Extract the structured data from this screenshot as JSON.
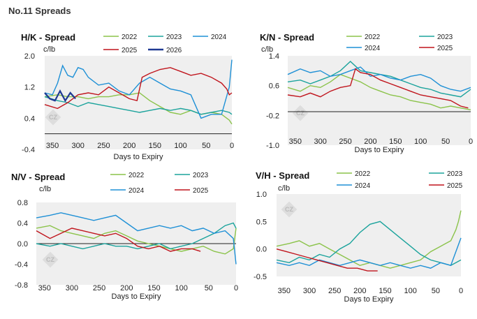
{
  "page_title": "No.11 Spreads",
  "colors": {
    "2022": "#8bc34a",
    "2023": "#1ba39c",
    "2024": "#1e90d6",
    "2025": "#c0141c",
    "2026": "#1f3a93",
    "plot_bg": "#efefef",
    "zero_line": "#222222"
  },
  "watermark": "CZ",
  "chart_data": [
    {
      "id": "hk",
      "type": "line",
      "title": "H/K - Spread",
      "ylabel": "c/lb",
      "xlabel": "Days to Expiry",
      "x_ticks": [
        350,
        300,
        250,
        200,
        150,
        100,
        50,
        0
      ],
      "y_ticks": [
        -0.4,
        0.4,
        1.2,
        2.0
      ],
      "y_tick_labels": [
        "-0.4",
        "0.4",
        "1.2",
        "2.0"
      ],
      "xlim": [
        365,
        0
      ],
      "ylim": [
        -0.4,
        2.0
      ],
      "ref_line": 0,
      "legend_placement": "top",
      "series": [
        {
          "name": "2022",
          "x": [
            365,
            340,
            320,
            300,
            280,
            260,
            240,
            220,
            200,
            180,
            160,
            140,
            120,
            100,
            80,
            60,
            40,
            20,
            5,
            0
          ],
          "y": [
            0.95,
            1.0,
            0.95,
            0.95,
            0.9,
            0.95,
            0.95,
            1.0,
            1.0,
            1.05,
            0.85,
            0.7,
            0.55,
            0.5,
            0.6,
            0.5,
            0.55,
            0.5,
            0.35,
            0.25
          ]
        },
        {
          "name": "2023",
          "x": [
            365,
            340,
            320,
            300,
            280,
            260,
            240,
            220,
            200,
            180,
            160,
            140,
            120,
            100,
            80,
            60,
            40,
            20,
            5,
            0
          ],
          "y": [
            0.95,
            0.85,
            0.8,
            0.7,
            0.8,
            0.75,
            0.7,
            0.65,
            0.6,
            0.55,
            0.6,
            0.65,
            0.6,
            0.65,
            0.6,
            0.5,
            0.55,
            0.6,
            0.55,
            0.5
          ]
        },
        {
          "name": "2024",
          "x": [
            365,
            350,
            340,
            330,
            320,
            310,
            300,
            290,
            280,
            260,
            240,
            220,
            200,
            180,
            160,
            140,
            120,
            100,
            80,
            60,
            40,
            20,
            5,
            0
          ],
          "y": [
            1.05,
            1.0,
            1.3,
            1.75,
            1.5,
            1.45,
            1.7,
            1.65,
            1.45,
            1.25,
            1.3,
            1.1,
            1.0,
            1.3,
            1.45,
            1.3,
            1.15,
            1.1,
            1.0,
            0.4,
            0.5,
            0.5,
            1.2,
            1.9
          ]
        },
        {
          "name": "2025",
          "x": [
            365,
            340,
            320,
            300,
            280,
            260,
            240,
            220,
            200,
            185,
            175,
            160,
            140,
            120,
            100,
            80,
            60,
            40,
            20,
            10,
            5,
            0
          ],
          "y": [
            0.75,
            0.65,
            0.8,
            1.0,
            1.05,
            1.0,
            1.2,
            1.05,
            0.9,
            0.85,
            1.45,
            1.55,
            1.65,
            1.7,
            1.6,
            1.5,
            1.55,
            1.45,
            1.3,
            1.15,
            1.0,
            1.05
          ]
        },
        {
          "name": "2026",
          "x": [
            365,
            355,
            345,
            335,
            325,
            315,
            305
          ],
          "y": [
            1.05,
            0.9,
            0.85,
            1.1,
            0.85,
            1.05,
            0.9
          ]
        }
      ]
    },
    {
      "id": "kn",
      "type": "line",
      "title": "K/N - Spread",
      "ylabel": "c/lb",
      "xlabel": "Days to Expiry",
      "x_ticks": [
        350,
        300,
        250,
        200,
        150,
        100,
        50,
        0
      ],
      "y_ticks": [
        -1.0,
        -0.2,
        0.6,
        1.4
      ],
      "y_tick_labels": [
        "-1.0",
        "-0.2",
        "0.6",
        "1.4"
      ],
      "xlim": [
        365,
        0
      ],
      "ylim": [
        -1.0,
        1.4
      ],
      "ref_line": -0.1,
      "legend_placement": "top",
      "series": [
        {
          "name": "2022",
          "x": [
            365,
            340,
            320,
            300,
            280,
            260,
            240,
            220,
            200,
            180,
            160,
            140,
            120,
            100,
            80,
            60,
            40,
            20,
            0
          ],
          "y": [
            0.55,
            0.45,
            0.6,
            0.55,
            0.7,
            0.9,
            0.8,
            0.7,
            0.55,
            0.45,
            0.35,
            0.3,
            0.2,
            0.15,
            0.1,
            0.0,
            0.05,
            0.0,
            -0.05
          ]
        },
        {
          "name": "2023",
          "x": [
            365,
            340,
            320,
            300,
            280,
            260,
            240,
            220,
            200,
            180,
            160,
            140,
            120,
            100,
            80,
            60,
            40,
            20,
            0
          ],
          "y": [
            0.7,
            0.75,
            0.65,
            0.75,
            0.85,
            1.0,
            1.25,
            1.0,
            0.95,
            0.9,
            0.85,
            0.75,
            0.65,
            0.55,
            0.5,
            0.4,
            0.35,
            0.3,
            0.5
          ]
        },
        {
          "name": "2024",
          "x": [
            365,
            340,
            320,
            300,
            280,
            260,
            240,
            220,
            200,
            180,
            160,
            140,
            120,
            100,
            80,
            60,
            40,
            20,
            0
          ],
          "y": [
            0.9,
            1.05,
            0.95,
            1.0,
            0.85,
            0.9,
            1.0,
            1.1,
            0.85,
            0.9,
            0.8,
            0.75,
            0.85,
            0.9,
            0.8,
            0.6,
            0.5,
            0.45,
            0.55
          ]
        },
        {
          "name": "2025",
          "x": [
            365,
            340,
            320,
            300,
            280,
            260,
            240,
            230,
            220,
            200,
            180,
            160,
            140,
            120,
            100,
            80,
            60,
            40,
            20,
            5
          ],
          "y": [
            0.35,
            0.3,
            0.4,
            0.3,
            0.45,
            0.55,
            0.6,
            1.05,
            0.95,
            0.9,
            0.75,
            0.65,
            0.55,
            0.45,
            0.35,
            0.3,
            0.25,
            0.2,
            0.05,
            0.0
          ]
        }
      ]
    },
    {
      "id": "nv",
      "type": "line",
      "title": "N/V - Spread",
      "ylabel": "c/lb",
      "xlabel": "Days to Expiry",
      "x_ticks": [
        350,
        300,
        250,
        200,
        150,
        100,
        50,
        0
      ],
      "y_ticks": [
        -0.8,
        -0.4,
        0.0,
        0.4,
        0.8
      ],
      "y_tick_labels": [
        "-0.8",
        "-0.4",
        "0.0",
        "0.4",
        "0.8"
      ],
      "xlim": [
        365,
        0
      ],
      "ylim": [
        -0.8,
        0.8
      ],
      "ref_line": 0,
      "legend_placement": "top",
      "series": [
        {
          "name": "2022",
          "x": [
            365,
            340,
            320,
            300,
            280,
            260,
            240,
            220,
            200,
            180,
            160,
            140,
            120,
            100,
            80,
            60,
            40,
            20,
            5,
            0
          ],
          "y": [
            0.3,
            0.35,
            0.25,
            0.2,
            0.15,
            0.1,
            0.2,
            0.25,
            0.15,
            0.05,
            0.0,
            -0.05,
            -0.1,
            -0.15,
            -0.1,
            -0.05,
            -0.15,
            -0.2,
            -0.1,
            0.3
          ]
        },
        {
          "name": "2023",
          "x": [
            365,
            340,
            320,
            300,
            280,
            260,
            240,
            220,
            200,
            180,
            160,
            140,
            120,
            100,
            80,
            60,
            40,
            20,
            5,
            0
          ],
          "y": [
            0.0,
            -0.05,
            0.0,
            -0.05,
            -0.1,
            -0.05,
            0.0,
            -0.05,
            -0.05,
            -0.1,
            -0.05,
            0.0,
            -0.1,
            -0.05,
            0.0,
            0.1,
            0.2,
            0.35,
            0.4,
            0.3
          ]
        },
        {
          "name": "2024",
          "x": [
            365,
            340,
            320,
            300,
            280,
            260,
            240,
            220,
            200,
            180,
            160,
            140,
            120,
            100,
            80,
            60,
            40,
            20,
            5,
            0
          ],
          "y": [
            0.5,
            0.55,
            0.6,
            0.55,
            0.5,
            0.45,
            0.5,
            0.55,
            0.4,
            0.25,
            0.3,
            0.35,
            0.3,
            0.35,
            0.25,
            0.3,
            0.2,
            0.25,
            0.1,
            -0.4
          ]
        },
        {
          "name": "2025",
          "x": [
            365,
            340,
            320,
            300,
            280,
            260,
            240,
            220,
            200,
            180,
            160,
            140,
            120,
            100,
            80,
            65
          ],
          "y": [
            0.25,
            0.1,
            0.2,
            0.3,
            0.25,
            0.2,
            0.15,
            0.2,
            0.1,
            -0.05,
            -0.1,
            -0.05,
            -0.15,
            -0.1,
            -0.1,
            -0.15
          ]
        }
      ]
    },
    {
      "id": "vh",
      "type": "line",
      "title": "V/H - Spread",
      "ylabel": "c/lb",
      "xlabel": "Days to Expiry",
      "x_ticks": [
        350,
        300,
        250,
        200,
        150,
        100,
        50,
        0
      ],
      "y_ticks": [
        -0.5,
        0.0,
        0.5,
        1.0
      ],
      "y_tick_labels": [
        "-0.5",
        "0.0",
        "0.5",
        "1.0"
      ],
      "xlim": [
        365,
        0
      ],
      "ylim": [
        -0.5,
        1.0
      ],
      "ref_line": null,
      "legend_placement": "top",
      "series": [
        {
          "name": "2022",
          "x": [
            365,
            340,
            320,
            300,
            280,
            260,
            240,
            220,
            200,
            180,
            160,
            140,
            120,
            100,
            80,
            60,
            40,
            20,
            10,
            5,
            0
          ],
          "y": [
            0.05,
            0.1,
            0.15,
            0.05,
            0.1,
            0.0,
            -0.1,
            -0.2,
            -0.3,
            -0.25,
            -0.3,
            -0.35,
            -0.3,
            -0.25,
            -0.2,
            -0.05,
            0.05,
            0.15,
            0.35,
            0.5,
            0.7
          ]
        },
        {
          "name": "2023",
          "x": [
            365,
            340,
            320,
            300,
            280,
            260,
            240,
            220,
            200,
            180,
            160,
            140,
            120,
            100,
            80,
            60,
            40,
            20,
            0
          ],
          "y": [
            -0.2,
            -0.25,
            -0.15,
            -0.2,
            -0.1,
            -0.15,
            0.0,
            0.1,
            0.3,
            0.45,
            0.5,
            0.35,
            0.2,
            0.05,
            -0.1,
            -0.2,
            -0.25,
            -0.3,
            -0.2
          ]
        },
        {
          "name": "2024",
          "x": [
            365,
            340,
            320,
            300,
            280,
            260,
            240,
            220,
            200,
            180,
            160,
            140,
            120,
            100,
            80,
            60,
            40,
            20,
            0
          ],
          "y": [
            -0.25,
            -0.3,
            -0.25,
            -0.3,
            -0.2,
            -0.25,
            -0.3,
            -0.25,
            -0.2,
            -0.25,
            -0.3,
            -0.25,
            -0.3,
            -0.35,
            -0.3,
            -0.35,
            -0.25,
            -0.3,
            0.2
          ]
        },
        {
          "name": "2025",
          "x": [
            365,
            345,
            325,
            305,
            285,
            265,
            245,
            225,
            205,
            185,
            165
          ],
          "y": [
            0.0,
            -0.05,
            -0.1,
            -0.15,
            -0.2,
            -0.25,
            -0.3,
            -0.35,
            -0.35,
            -0.4,
            -0.4
          ]
        }
      ]
    }
  ]
}
